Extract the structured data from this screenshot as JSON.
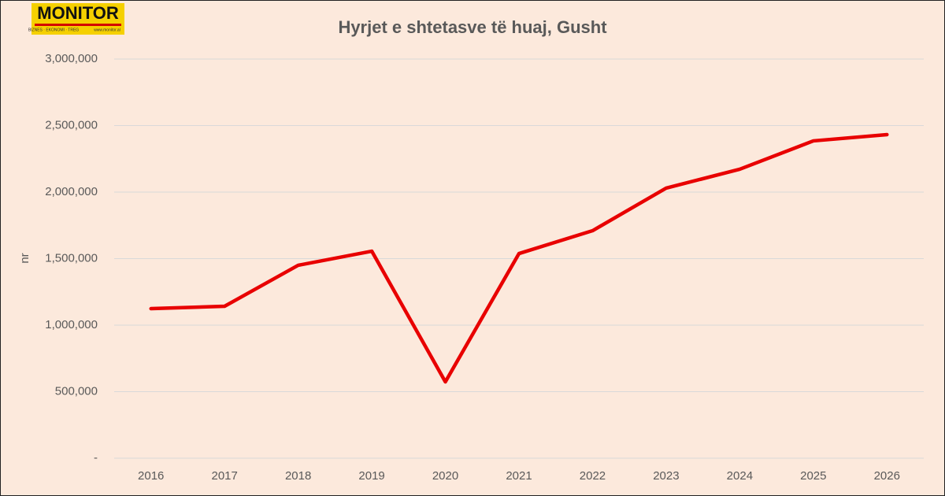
{
  "logo": {
    "name": "MONITOR",
    "tagline": "BIZNES · EKONOMI · TREG",
    "url": "www.monitor.al"
  },
  "chart_data": {
    "type": "line",
    "title": "Hyrjet e shtetasve të huaj, Gusht",
    "y_label": "nr",
    "categories": [
      "2016",
      "2017",
      "2018",
      "2019",
      "2020",
      "2021",
      "2022",
      "2023",
      "2024",
      "2025",
      "2026"
    ],
    "series": [
      {
        "name": "Hyrjet",
        "color": "#e80000",
        "values": [
          1124000,
          1142000,
          1450000,
          1556000,
          574000,
          1538000,
          1710000,
          2030000,
          2172000,
          2385000,
          2432000
        ]
      }
    ],
    "ylim": [
      0,
      3000000
    ],
    "yticks": [
      {
        "value": 0,
        "label": "-"
      },
      {
        "value": 500000,
        "label": "500,000"
      },
      {
        "value": 1000000,
        "label": "1,000,000"
      },
      {
        "value": 1500000,
        "label": "1,500,000"
      },
      {
        "value": 2000000,
        "label": "2,000,000"
      },
      {
        "value": 2500000,
        "label": "2,500,000"
      },
      {
        "value": 3000000,
        "label": "3,000,000"
      }
    ],
    "grid": true
  }
}
